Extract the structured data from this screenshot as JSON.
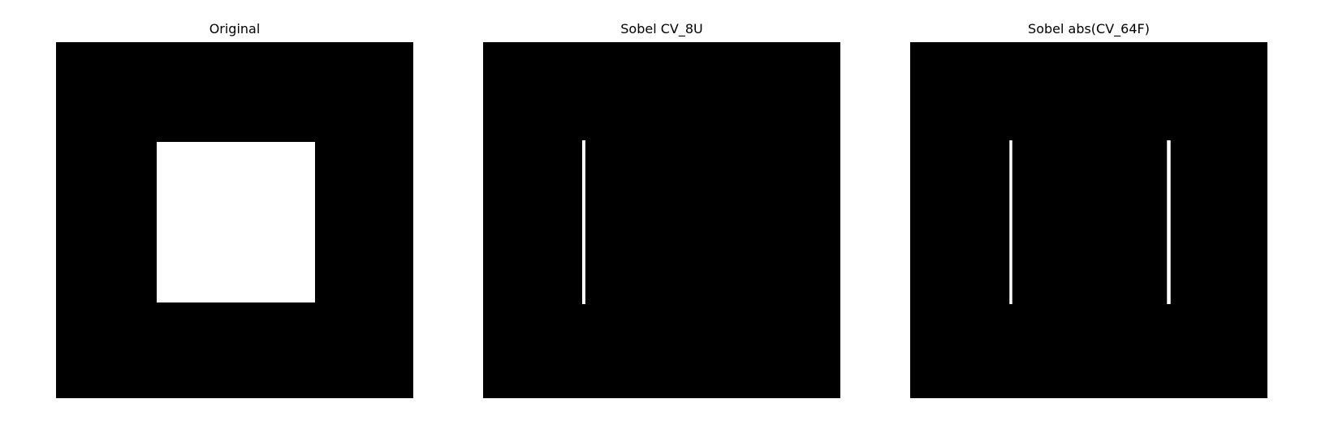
{
  "panels": [
    {
      "title": "Original"
    },
    {
      "title": "Sobel CV_8U"
    },
    {
      "title": "Sobel abs(CV_64F)"
    }
  ],
  "colors": {
    "background": "#ffffff",
    "image_black": "#000000",
    "image_white": "#ffffff"
  }
}
